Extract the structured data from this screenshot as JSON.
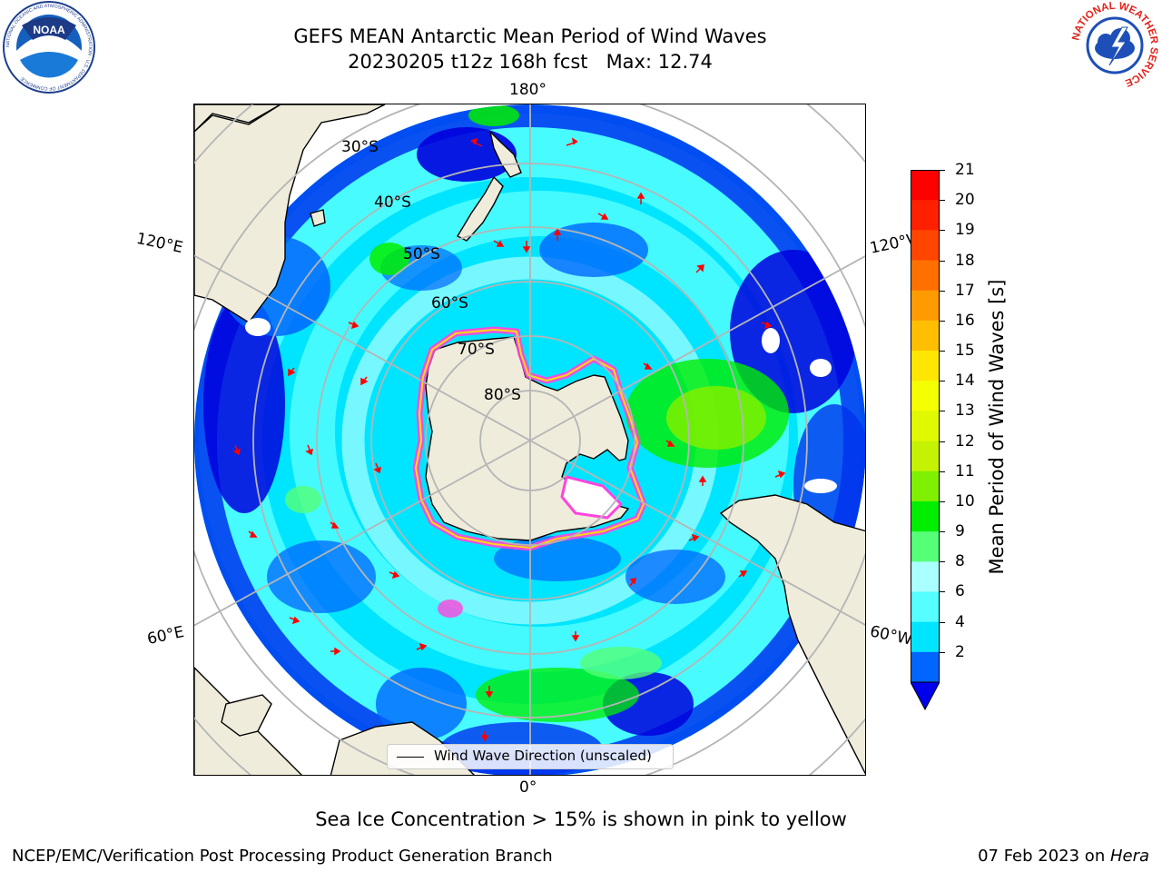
{
  "title": {
    "line1": "GEFS MEAN Antarctic Mean Period of Wind Waves",
    "line2": "20230205 t12z 168h fcst   Max: 12.74"
  },
  "logos": {
    "left": "NOAA",
    "left_ring_text": "NATIONAL OCEANIC AND ATMOSPHERIC ADMINISTRATION · U.S. DEPARTMENT OF COMMERCE",
    "right_ring_text": "NATIONAL WEATHER SERVICE"
  },
  "map": {
    "projection": "south-polar-stereographic",
    "longitude_labels": {
      "top": "180°",
      "bottom": "0°",
      "upper_left": "120°E",
      "upper_right": "120°W",
      "lower_left": "60°E",
      "lower_right": "60°W"
    },
    "latitude_labels": [
      "30°S",
      "40°S",
      "50°S",
      "60°S",
      "70°S",
      "80°S"
    ],
    "legend": "Wind Wave Direction (unscaled)",
    "field_colors": {
      "below_2": "#0000dd",
      "2_4": "#0066ff",
      "4_6": "#00e5ff",
      "6_8": "#55ffff",
      "8_9": "#aaffff",
      "9_10": "#55ff77",
      "10_11": "#00ee00",
      "11_12": "#66ee00",
      "12_13": "#bbee00",
      "land": "#efecdc",
      "sea_ice": "#ff44dd",
      "arrows": "#ff0000"
    }
  },
  "colorbar": {
    "label": "Mean Period of Wind Waves [s]",
    "ticks": [
      "21",
      "20",
      "19",
      "18",
      "17",
      "16",
      "15",
      "14",
      "13",
      "12",
      "11",
      "10",
      "9",
      "8",
      "6",
      "4",
      "2"
    ],
    "colors": [
      "#ff0000",
      "#ff2000",
      "#ff4500",
      "#ff7000",
      "#ff9a00",
      "#ffbf00",
      "#ffe600",
      "#f4ff00",
      "#e0f800",
      "#c4f200",
      "#7ff000",
      "#00ee00",
      "#55ff77",
      "#aaffff",
      "#55ffff",
      "#00e5ff",
      "#0066ff"
    ],
    "extend_color": "#0000ee"
  },
  "notes": {
    "sea_ice": "Sea Ice Concentration > 15% is shown in pink to yellow"
  },
  "footer": {
    "left": "NCEP/EMC/Verification Post Processing Product Generation Branch",
    "right_date": "07 Feb 2023 on ",
    "right_host": "Hera"
  }
}
